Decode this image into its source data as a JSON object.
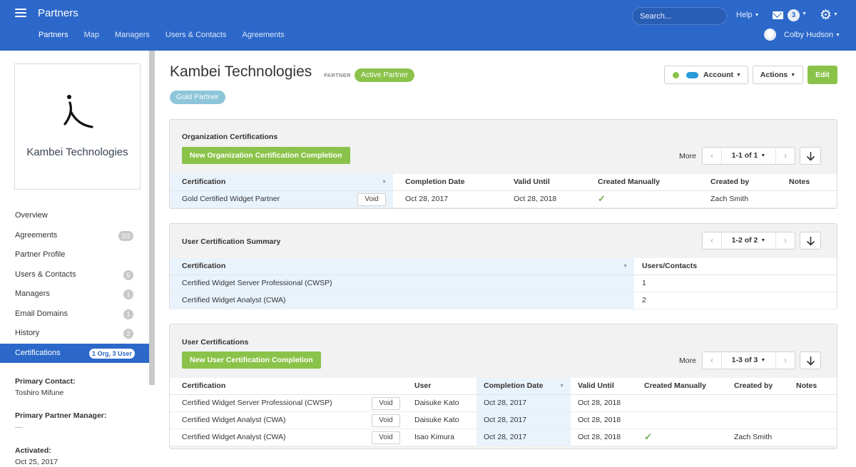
{
  "header": {
    "app_title": "Partners",
    "nav": [
      "Partners",
      "Map",
      "Managers",
      "Users & Contacts",
      "Agreements"
    ],
    "search_placeholder": "Search...",
    "help_label": "Help",
    "mail_count": "3",
    "user_name": "Colby Hudson"
  },
  "sidebar": {
    "logo_text": "Kambei Technologies",
    "items": [
      {
        "label": "Overview",
        "count": ""
      },
      {
        "label": "Agreements",
        "count": "2/2"
      },
      {
        "label": "Partner Profile",
        "count": ""
      },
      {
        "label": "Users & Contacts",
        "count": "5"
      },
      {
        "label": "Managers",
        "count": "1"
      },
      {
        "label": "Email Domains",
        "count": "1"
      },
      {
        "label": "History",
        "count": "2"
      },
      {
        "label": "Certifications",
        "count": "1 Org, 3 User"
      }
    ],
    "primary_contact_label": "Primary Contact:",
    "primary_contact_value": "Toshiro Mifune",
    "primary_manager_label": "Primary Partner Manager:",
    "primary_manager_value": "—",
    "activated_label": "Activated:",
    "activated_value": "Oct 25, 2017"
  },
  "main": {
    "title": "Kambei Technologies",
    "type_tag": "PARTNER",
    "status_badge": "Active Partner",
    "tier_badge": "Gold Partner",
    "account_label": "Account",
    "actions_label": "Actions",
    "edit_label": "Edit"
  },
  "org_certs": {
    "title": "Organization Certifications",
    "new_button": "New Organization Certification Completion",
    "more_label": "More",
    "range": "1-1 of 1",
    "columns": [
      "Certification",
      "Completion Date",
      "Valid Until",
      "Created Manually",
      "Created by",
      "Notes"
    ],
    "void_label": "Void",
    "rows": [
      {
        "certification": "Gold Certified Widget Partner",
        "completion": "Oct 28, 2017",
        "valid": "Oct 28, 2018",
        "manual": true,
        "created_by": "Zach Smith",
        "notes": ""
      }
    ]
  },
  "user_summary": {
    "title": "User Certification Summary",
    "range": "1-2 of 2",
    "columns": [
      "Certification",
      "Users/Contacts"
    ],
    "rows": [
      {
        "certification": "Certified Widget Server Professional (CWSP)",
        "count": "1"
      },
      {
        "certification": "Certified Widget Analyst (CWA)",
        "count": "2"
      }
    ]
  },
  "user_certs": {
    "title": "User Certifications",
    "new_button": "New User Certification Completion",
    "more_label": "More",
    "range": "1-3 of 3",
    "columns": [
      "Certification",
      "User",
      "Completion Date",
      "Valid Until",
      "Created Manually",
      "Created by",
      "Notes"
    ],
    "void_label": "Void",
    "rows": [
      {
        "certification": "Certified Widget Server Professional (CWSP)",
        "user": "Daisuke Kato",
        "completion": "Oct 28, 2017",
        "valid": "Oct 28, 2018",
        "manual": false,
        "created_by": "",
        "notes": ""
      },
      {
        "certification": "Certified Widget Analyst (CWA)",
        "user": "Daisuke Kato",
        "completion": "Oct 28, 2017",
        "valid": "Oct 28, 2018",
        "manual": false,
        "created_by": "",
        "notes": ""
      },
      {
        "certification": "Certified Widget Analyst (CWA)",
        "user": "Isao Kimura",
        "completion": "Oct 28, 2017",
        "valid": "Oct 28, 2018",
        "manual": true,
        "created_by": "Zach Smith",
        "notes": ""
      }
    ]
  },
  "colors": {
    "header_blue": "#2c68c9",
    "green": "#8bc34a",
    "highlight": "#e9f3fc"
  }
}
